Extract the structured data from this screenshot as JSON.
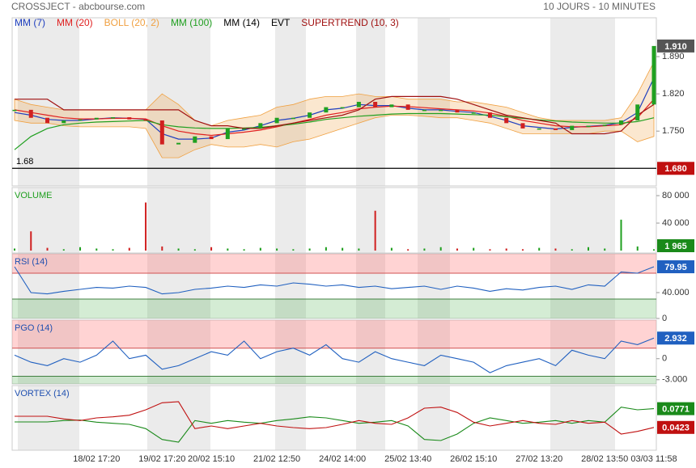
{
  "header": {
    "title": "CROSSJECT - abcbourse.com",
    "period": "10 JOURS - 10 MINUTES"
  },
  "chart_data": [
    {
      "type": "stock",
      "categories": [
        null,
        null,
        null,
        null,
        null,
        "18/02 17:20",
        null,
        null,
        null,
        "19/02 17:20",
        null,
        null,
        "20/02 15:10",
        null,
        null,
        null,
        "21/02 12:50",
        null,
        null,
        null,
        "24/02 14:00",
        null,
        null,
        null,
        "25/02 13:40",
        null,
        null,
        null,
        "26/02 15:10",
        null,
        null,
        null,
        "27/02 13:20",
        null,
        null,
        null,
        "28/02 13:50",
        null,
        null,
        "03/03 11:58"
      ],
      "price": {
        "values": [
          1.79,
          1.775,
          1.765,
          1.77,
          1.772,
          1.775,
          1.776,
          1.772,
          1.77,
          1.725,
          1.728,
          1.74,
          1.735,
          1.755,
          1.755,
          1.765,
          1.775,
          1.775,
          1.785,
          1.795,
          1.795,
          1.805,
          1.795,
          1.8,
          1.79,
          1.79,
          1.79,
          1.785,
          1.785,
          1.775,
          1.765,
          1.755,
          1.755,
          1.752,
          1.76,
          1.76,
          1.762,
          1.77,
          1.8,
          1.91
        ],
        "last_label": "1.910"
      },
      "series": [
        {
          "name": "MM (7)",
          "color": "#1f3fbf",
          "values": [
            1.785,
            1.78,
            1.772,
            1.77,
            1.77,
            1.773,
            1.775,
            1.774,
            1.772,
            1.745,
            1.735,
            1.735,
            1.737,
            1.748,
            1.752,
            1.76,
            1.77,
            1.774,
            1.78,
            1.79,
            1.793,
            1.8,
            1.798,
            1.798,
            1.793,
            1.79,
            1.79,
            1.787,
            1.785,
            1.778,
            1.77,
            1.76,
            1.757,
            1.754,
            1.757,
            1.759,
            1.761,
            1.766,
            1.785,
            1.85
          ]
        },
        {
          "name": "MM (20)",
          "color": "#e02020",
          "values": [
            1.79,
            1.785,
            1.78,
            1.775,
            1.773,
            1.773,
            1.774,
            1.774,
            1.773,
            1.76,
            1.75,
            1.745,
            1.742,
            1.745,
            1.748,
            1.752,
            1.758,
            1.765,
            1.772,
            1.78,
            1.785,
            1.792,
            1.795,
            1.797,
            1.796,
            1.794,
            1.792,
            1.79,
            1.788,
            1.784,
            1.778,
            1.77,
            1.765,
            1.76,
            1.758,
            1.758,
            1.76,
            1.762,
            1.775,
            1.81
          ]
        },
        {
          "name": "BOLL (20, 2)",
          "color": "#f0a040",
          "upper": [
            1.81,
            1.8,
            1.795,
            1.79,
            1.79,
            1.79,
            1.79,
            1.79,
            1.79,
            1.82,
            1.8,
            1.77,
            1.76,
            1.77,
            1.775,
            1.78,
            1.795,
            1.8,
            1.81,
            1.815,
            1.815,
            1.82,
            1.815,
            1.815,
            1.81,
            1.81,
            1.81,
            1.805,
            1.805,
            1.8,
            1.795,
            1.785,
            1.775,
            1.77,
            1.77,
            1.77,
            1.77,
            1.775,
            1.82,
            1.88
          ],
          "lower": [
            1.77,
            1.765,
            1.765,
            1.76,
            1.758,
            1.758,
            1.758,
            1.758,
            1.755,
            1.7,
            1.7,
            1.715,
            1.725,
            1.72,
            1.72,
            1.725,
            1.72,
            1.73,
            1.735,
            1.745,
            1.755,
            1.765,
            1.775,
            1.78,
            1.78,
            1.778,
            1.775,
            1.775,
            1.77,
            1.765,
            1.755,
            1.745,
            1.745,
            1.745,
            1.745,
            1.745,
            1.75,
            1.75,
            1.73,
            1.74
          ]
        },
        {
          "name": "MM (100)",
          "color": "#20a020",
          "values": [
            1.715,
            1.74,
            1.755,
            1.762,
            1.765,
            1.767,
            1.768,
            1.769,
            1.77,
            1.762,
            1.758,
            1.756,
            1.755,
            1.755,
            1.756,
            1.757,
            1.76,
            1.763,
            1.767,
            1.772,
            1.775,
            1.778,
            1.78,
            1.782,
            1.783,
            1.783,
            1.783,
            1.782,
            1.781,
            1.78,
            1.777,
            1.774,
            1.771,
            1.769,
            1.767,
            1.766,
            1.765,
            1.765,
            1.768,
            1.775
          ]
        },
        {
          "name": "MM (14)",
          "color": "#000000"
        },
        {
          "name": "EVT",
          "color": "#000000"
        },
        {
          "name": "SUPERTREND (10, 3)",
          "color": "#a01010",
          "values": [
            1.81,
            1.81,
            1.81,
            1.79,
            1.79,
            1.79,
            1.79,
            1.79,
            1.79,
            1.79,
            1.79,
            1.77,
            1.76,
            1.76,
            1.755,
            1.755,
            1.76,
            1.765,
            1.77,
            1.775,
            1.78,
            1.79,
            1.81,
            1.815,
            1.815,
            1.815,
            1.815,
            1.81,
            1.8,
            1.79,
            1.78,
            1.775,
            1.77,
            1.765,
            1.745,
            1.745,
            1.745,
            1.75,
            1.78,
            1.8
          ]
        }
      ],
      "hline": {
        "value": 1.68,
        "label": "1.68",
        "axis_label": "1.680"
      },
      "ylim": [
        1.647,
        1.963
      ],
      "yticks": [
        {
          "value": 1.89,
          "label": "1.890"
        },
        {
          "value": 1.82,
          "label": "1.820"
        },
        {
          "value": 1.75,
          "label": "1.750"
        }
      ]
    },
    {
      "type": "bar",
      "title": "VOLUME",
      "color": "#20a020",
      "values": [
        3000,
        28000,
        4000,
        2000,
        5000,
        3000,
        2000,
        4000,
        70000,
        6000,
        3000,
        2000,
        5000,
        3000,
        2000,
        4000,
        3000,
        2000,
        3000,
        5000,
        4000,
        3000,
        58000,
        4000,
        2000,
        3000,
        5000,
        3000,
        4000,
        2000,
        3000,
        2000,
        4000,
        3000,
        2000,
        5000,
        3000,
        45000,
        6000,
        1965
      ],
      "last_label": "1 965",
      "ylim": [
        -3500,
        91800
      ],
      "yticks": [
        {
          "value": 80000,
          "label": "80 000"
        },
        {
          "value": 40000,
          "label": "40 000"
        }
      ]
    },
    {
      "type": "line",
      "title": "RSI (14)",
      "levels": [
        70,
        30
      ],
      "series": [
        {
          "color": "#2060c0",
          "values": [
            80,
            40,
            38,
            42,
            45,
            48,
            47,
            50,
            48,
            38,
            40,
            45,
            47,
            50,
            48,
            52,
            50,
            55,
            53,
            50,
            52,
            48,
            50,
            46,
            48,
            50,
            45,
            50,
            47,
            42,
            46,
            44,
            48,
            50,
            45,
            52,
            50,
            72,
            70,
            79.95
          ]
        }
      ],
      "ylim": [
        0,
        100
      ],
      "yticks": [
        {
          "value": 40,
          "label": "40.000"
        },
        0
      ]
    },
    {
      "type": "line",
      "title": "PGO (14)",
      "levels": [
        1.5,
        -2.5
      ],
      "series": [
        {
          "color": "#2060c0",
          "values": [
            0.5,
            -0.5,
            -1,
            0,
            -0.5,
            0.5,
            2.5,
            0,
            0.5,
            -1.5,
            -1,
            0,
            1,
            0.5,
            2.5,
            0,
            1,
            1.5,
            0.5,
            2,
            0,
            -0.5,
            1,
            0,
            -0.5,
            -1,
            0.5,
            0,
            -0.5,
            -2,
            -1,
            -0.5,
            0,
            -1,
            1.2,
            0.5,
            0,
            2.5,
            2,
            2.932
          ]
        }
      ],
      "ylim": [
        -3.6,
        5.5
      ],
      "yticks": [
        0,
        {
          "value": -3,
          "label": "-3.000"
        }
      ]
    },
    {
      "type": "line",
      "title": "VORTEX (14)",
      "series": [
        {
          "color": "#1a8a1a",
          "values": [
            0.0525,
            0.0525,
            0.0525,
            0.055,
            0.056,
            0.052,
            0.05,
            0.048,
            0.04,
            0.02,
            0.015,
            0.055,
            0.05,
            0.055,
            0.052,
            0.05,
            0.055,
            0.058,
            0.062,
            0.06,
            0.055,
            0.05,
            0.052,
            0.055,
            0.045,
            0.02,
            0.018,
            0.03,
            0.05,
            0.06,
            0.055,
            0.05,
            0.052,
            0.055,
            0.05,
            0.055,
            0.052,
            0.08,
            0.075,
            0.0771
          ]
        },
        {
          "color": "#c01010",
          "values": [
            0.063,
            0.063,
            0.063,
            0.058,
            0.055,
            0.06,
            0.062,
            0.065,
            0.075,
            0.088,
            0.09,
            0.04,
            0.045,
            0.04,
            0.045,
            0.05,
            0.045,
            0.042,
            0.04,
            0.042,
            0.048,
            0.055,
            0.05,
            0.048,
            0.06,
            0.078,
            0.08,
            0.07,
            0.052,
            0.045,
            0.05,
            0.055,
            0.05,
            0.048,
            0.055,
            0.05,
            0.052,
            0.03,
            0.035,
            0.0423
          ]
        }
      ],
      "ylim": [
        0,
        0.12
      ]
    }
  ]
}
